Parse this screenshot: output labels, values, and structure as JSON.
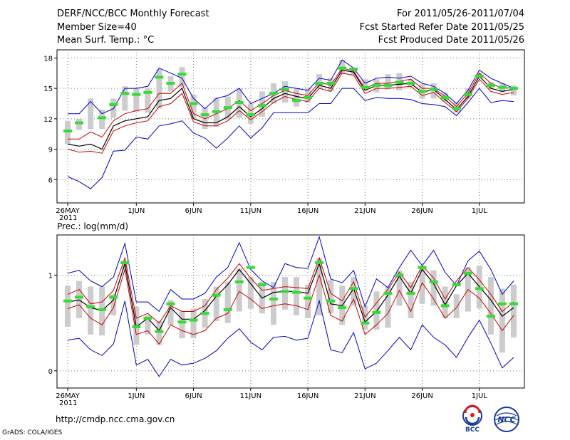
{
  "header": {
    "title": "DERF/NCC/BCC Monthly Forecast",
    "member": "Member Size=40",
    "variable": "Mean Surf. Temp.: °C",
    "period": "For 2011/05/26-2011/07/04",
    "started": "Fcst Started Refer Date 2011/05/25",
    "produced": "Fcst Produced Date 2011/05/26"
  },
  "footer": {
    "url": "http://cmdp.ncc.cma.gov.cn",
    "credit": "GrADS: COLA/IGES",
    "logo_left_text": "BCC",
    "logo_right_text": "NCC"
  },
  "colors": {
    "envelope": "#0000cc",
    "spread": "#cc0000",
    "mean": "#000000",
    "median": "#33dd33",
    "box": "#cccccc",
    "grid": "#777777"
  },
  "chart_data": [
    {
      "type": "line",
      "title": "",
      "ylabel": "Mean Surf. Temp.: °C",
      "ylim": [
        3.7,
        18.8
      ],
      "yticks": [
        6,
        9,
        12,
        15,
        18
      ],
      "ytick_labels": [
        "6",
        "9",
        "12",
        "15",
        "18"
      ],
      "xlim": [
        0,
        39
      ],
      "xticks": [
        0,
        6,
        11,
        16,
        21,
        26,
        31,
        36
      ],
      "xtick_labels": [
        "26MAY",
        "1JUN",
        "6JUN",
        "11JUN",
        "16JUN",
        "21JUN",
        "26JUN",
        "1JUL"
      ],
      "xtick_sublabel": "2011",
      "grid": true,
      "series": [
        {
          "name": "max",
          "values": [
            12.5,
            12.5,
            13.7,
            12.5,
            13.0,
            15.0,
            15.0,
            15.2,
            17.0,
            16.5,
            16.0,
            14.0,
            13.0,
            14.0,
            14.3,
            15.0,
            13.5,
            14.0,
            14.5,
            15.2,
            15.0,
            14.8,
            16.0,
            15.8,
            17.8,
            17.0,
            15.5,
            16.0,
            16.1,
            16.0,
            16.2,
            15.5,
            15.2,
            14.5,
            13.5,
            14.8,
            16.8,
            16.0,
            15.5,
            15.0
          ]
        },
        {
          "name": "upper",
          "values": [
            10.0,
            10.0,
            10.7,
            10.2,
            11.8,
            12.5,
            12.8,
            13.0,
            14.5,
            14.5,
            15.5,
            12.5,
            12.0,
            12.5,
            13.0,
            13.8,
            12.8,
            13.5,
            14.3,
            14.8,
            14.5,
            14.3,
            15.6,
            15.3,
            17.0,
            16.7,
            15.0,
            15.5,
            15.5,
            15.7,
            15.9,
            15.0,
            15.0,
            14.2,
            13.2,
            14.5,
            16.5,
            15.5,
            15.0,
            15.1
          ]
        },
        {
          "name": "mean",
          "values": [
            9.5,
            9.3,
            9.5,
            9.0,
            11.3,
            11.8,
            12.0,
            12.2,
            13.8,
            14.0,
            15.0,
            12.0,
            11.6,
            11.6,
            12.2,
            13.2,
            12.2,
            13.0,
            14.0,
            14.5,
            14.2,
            14.0,
            15.3,
            15.0,
            16.8,
            16.6,
            14.8,
            15.3,
            15.3,
            15.4,
            15.5,
            14.6,
            14.9,
            13.9,
            12.9,
            14.2,
            16.2,
            15.0,
            14.7,
            14.9
          ]
        },
        {
          "name": "lower",
          "values": [
            9.0,
            8.7,
            8.8,
            8.6,
            10.8,
            11.3,
            11.6,
            11.8,
            13.2,
            13.5,
            14.5,
            11.7,
            11.3,
            11.3,
            11.8,
            12.8,
            11.9,
            12.7,
            13.6,
            14.2,
            13.9,
            13.7,
            15.0,
            14.7,
            16.5,
            16.3,
            14.5,
            15.0,
            15.0,
            15.1,
            15.2,
            14.3,
            14.6,
            13.6,
            12.7,
            14.0,
            15.9,
            14.7,
            14.4,
            14.6
          ]
        },
        {
          "name": "min",
          "values": [
            6.3,
            5.8,
            5.1,
            6.2,
            8.8,
            8.9,
            10.2,
            10.0,
            11.3,
            11.5,
            11.8,
            10.6,
            10.1,
            9.1,
            10.1,
            11.3,
            10.1,
            11.1,
            12.6,
            12.6,
            12.6,
            12.6,
            13.5,
            13.5,
            15.0,
            15.0,
            13.8,
            14.1,
            14.0,
            14.0,
            13.9,
            13.5,
            13.4,
            13.2,
            12.3,
            13.6,
            15.0,
            13.6,
            13.8,
            13.7
          ]
        },
        {
          "name": "median",
          "values": [
            10.8,
            11.6,
            null,
            12.1,
            13.4,
            14.5,
            14.4,
            14.6,
            16.1,
            15.5,
            16.4,
            13.5,
            12.4,
            12.7,
            13.1,
            13.6,
            12.4,
            13.3,
            14.5,
            14.9,
            13.8,
            14.1,
            15.5,
            15.5,
            17.0,
            16.9,
            15.1,
            15.3,
            15.3,
            15.6,
            15.5,
            14.7,
            14.9,
            14.1,
            13.0,
            14.4,
            16.2,
            15.3,
            15.1,
            15.0
          ]
        },
        {
          "name": "box_high",
          "values": [
            11.8,
            12.0,
            14.0,
            12.9,
            14.0,
            15.2,
            15.0,
            15.0,
            16.9,
            16.2,
            17.1,
            14.4,
            13.1,
            14.1,
            14.2,
            15.0,
            13.5,
            14.7,
            15.5,
            15.7,
            15.0,
            15.0,
            16.4,
            16.0,
            17.8,
            17.0,
            15.9,
            15.9,
            16.4,
            16.5,
            15.9,
            15.4,
            15.5,
            14.6,
            13.6,
            15.0,
            16.5,
            15.6,
            15.5,
            15.3
          ]
        },
        {
          "name": "box_low",
          "values": [
            9.5,
            10.9,
            11.0,
            11.0,
            12.1,
            12.8,
            12.7,
            12.6,
            13.0,
            14.7,
            15.1,
            12.0,
            11.0,
            11.2,
            11.9,
            12.1,
            11.5,
            12.2,
            13.5,
            13.6,
            13.2,
            13.6,
            15.0,
            14.7,
            16.4,
            16.3,
            14.8,
            14.6,
            14.9,
            14.8,
            15.1,
            14.0,
            14.0,
            13.7,
            12.6,
            14.0,
            16.0,
            14.9,
            14.6,
            14.3
          ]
        }
      ]
    },
    {
      "type": "line",
      "title": "Prec.: log(mm/d)",
      "ylabel": "Prec.: log(mm/d)",
      "ylim": [
        -0.18,
        1.42
      ],
      "yticks": [
        0,
        1
      ],
      "ytick_labels": [
        "0",
        "1"
      ],
      "xlim": [
        0,
        39
      ],
      "xticks": [
        0,
        6,
        11,
        16,
        21,
        26,
        31,
        36
      ],
      "xtick_labels": [
        "26MAY",
        "1JUN",
        "6JUN",
        "11JUN",
        "16JUN",
        "21JUN",
        "26JUN",
        "1JUL"
      ],
      "xtick_sublabel": "2011",
      "grid": true,
      "series": [
        {
          "name": "max",
          "values": [
            1.02,
            1.05,
            0.94,
            0.88,
            0.98,
            1.33,
            0.72,
            0.72,
            0.62,
            0.85,
            0.75,
            0.75,
            0.81,
            0.98,
            1.08,
            1.34,
            1.06,
            0.94,
            0.87,
            1.12,
            1.08,
            1.07,
            1.4,
            0.96,
            0.92,
            1.05,
            0.67,
            0.96,
            0.87,
            1.08,
            1.26,
            1.1,
            1.26,
            1.03,
            0.89,
            1.15,
            1.25,
            1.06,
            0.8,
            0.94
          ]
        },
        {
          "name": "upper",
          "values": [
            0.8,
            0.85,
            0.7,
            0.72,
            0.84,
            1.18,
            0.55,
            0.6,
            0.5,
            0.68,
            0.62,
            0.62,
            0.68,
            0.85,
            0.97,
            1.12,
            0.97,
            0.84,
            0.86,
            0.88,
            0.87,
            0.86,
            1.18,
            0.81,
            0.73,
            0.93,
            0.56,
            0.71,
            0.85,
            1.03,
            0.87,
            1.1,
            0.97,
            0.75,
            0.94,
            1.08,
            0.95,
            0.8,
            0.62,
            0.72
          ]
        },
        {
          "name": "mean",
          "values": [
            0.72,
            0.74,
            0.66,
            0.63,
            0.74,
            1.12,
            0.46,
            0.55,
            0.42,
            0.66,
            0.54,
            0.54,
            0.63,
            0.78,
            0.9,
            1.06,
            0.91,
            0.76,
            0.82,
            0.83,
            0.83,
            0.81,
            1.12,
            0.7,
            0.68,
            0.86,
            0.51,
            0.62,
            0.79,
            0.99,
            0.81,
            1.06,
            0.91,
            0.69,
            0.89,
            1.02,
            0.88,
            0.74,
            0.57,
            0.66
          ]
        },
        {
          "name": "lower",
          "values": [
            0.65,
            0.69,
            0.55,
            0.48,
            0.66,
            1.06,
            0.38,
            0.42,
            0.28,
            0.48,
            0.42,
            0.38,
            0.42,
            0.55,
            0.6,
            0.83,
            0.75,
            0.65,
            0.68,
            0.7,
            0.68,
            0.64,
            1.0,
            0.58,
            0.52,
            0.75,
            0.38,
            0.48,
            0.6,
            0.84,
            0.62,
            0.92,
            0.75,
            0.55,
            0.66,
            0.85,
            0.76,
            0.6,
            0.42,
            0.58
          ]
        },
        {
          "name": "min",
          "values": [
            0.32,
            0.34,
            0.22,
            0.16,
            0.28,
            0.73,
            0.06,
            0.12,
            -0.06,
            0.12,
            0.06,
            0.08,
            0.13,
            0.21,
            0.34,
            0.44,
            0.3,
            0.22,
            0.35,
            0.36,
            0.32,
            0.34,
            0.73,
            0.22,
            0.19,
            0.4,
            0.02,
            0.08,
            0.21,
            0.35,
            0.22,
            0.48,
            0.35,
            0.27,
            0.14,
            0.35,
            0.53,
            0.29,
            0.03,
            0.14
          ]
        },
        {
          "name": "median",
          "values": [
            0.73,
            0.77,
            0.67,
            0.64,
            0.77,
            1.13,
            0.46,
            0.55,
            0.41,
            0.7,
            0.51,
            0.53,
            0.6,
            0.79,
            0.64,
            0.93,
            1.08,
            0.9,
            0.75,
            0.83,
            0.82,
            0.76,
            1.13,
            0.73,
            0.66,
            0.86,
            0.5,
            0.61,
            0.81,
            1.0,
            0.81,
            1.08,
            0.93,
            0.68,
            0.9,
            1.02,
            0.86,
            0.57,
            0.7,
            0.7
          ]
        },
        {
          "name": "box_high",
          "values": [
            0.89,
            0.94,
            0.88,
            0.88,
            0.8,
            1.15,
            0.67,
            0.58,
            0.52,
            0.74,
            0.62,
            0.65,
            0.75,
            0.88,
            0.93,
            1.07,
            0.98,
            0.93,
            0.93,
            0.98,
            0.98,
            0.9,
            1.18,
            0.95,
            0.89,
            0.98,
            0.68,
            0.83,
            0.88,
            1.05,
            0.93,
            1.1,
            1.05,
            0.88,
            0.8,
            1.08,
            1.1,
            0.98,
            0.86,
            0.9
          ]
        },
        {
          "name": "box_low",
          "values": [
            0.46,
            0.55,
            0.38,
            0.37,
            0.58,
            1.05,
            0.27,
            0.38,
            0.27,
            0.48,
            0.34,
            0.34,
            0.45,
            0.52,
            0.5,
            0.62,
            0.65,
            0.6,
            0.48,
            0.64,
            0.58,
            0.55,
            0.58,
            0.6,
            0.48,
            0.68,
            0.43,
            0.43,
            0.45,
            0.68,
            0.55,
            0.7,
            0.68,
            0.55,
            0.55,
            0.62,
            0.65,
            0.38,
            0.19,
            0.35
          ]
        }
      ]
    }
  ]
}
